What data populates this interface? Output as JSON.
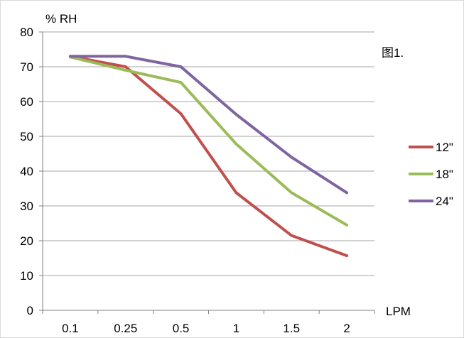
{
  "chart_data": {
    "type": "line",
    "title": "",
    "annotation": "图1.",
    "xlabel": "LPM",
    "ylabel": "% RH",
    "categories": [
      "0.1",
      "0.25",
      "0.5",
      "1",
      "1.5",
      "2"
    ],
    "ylim": [
      0,
      80
    ],
    "yticks": [
      0,
      10,
      20,
      30,
      40,
      50,
      60,
      70,
      80
    ],
    "grid": "horizontal",
    "legend_position": "right",
    "series": [
      {
        "name": "12\"",
        "color": "#c0504d",
        "values": [
          73,
          70,
          56.5,
          33.8,
          21.5,
          15.7
        ]
      },
      {
        "name": "18\"",
        "color": "#9bbb59",
        "values": [
          72.8,
          69,
          65.5,
          47.8,
          33.8,
          24.5
        ]
      },
      {
        "name": "24\"",
        "color": "#8064a2",
        "values": [
          73,
          73,
          70,
          56.3,
          44,
          33.8
        ]
      }
    ]
  }
}
